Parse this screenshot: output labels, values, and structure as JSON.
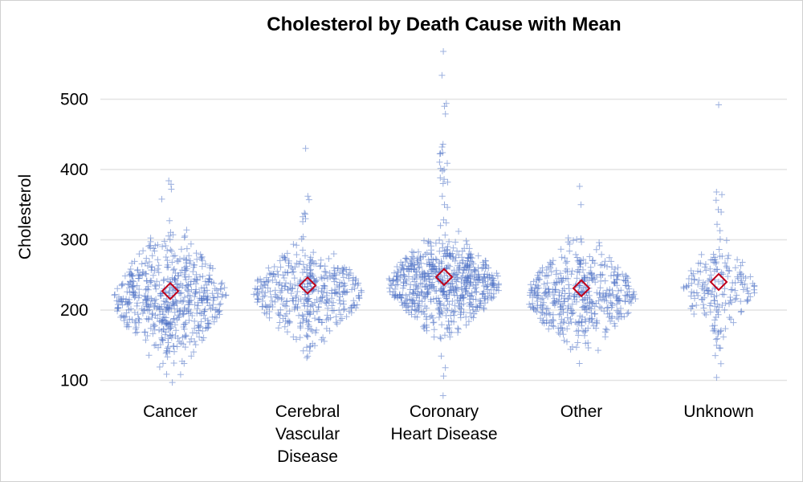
{
  "chart_data": {
    "type": "scatter",
    "subtype": "jittered dot plot with mean marker",
    "title": "Cholesterol by Death Cause with Mean",
    "xlabel": "",
    "ylabel": "Cholesterol",
    "ylim": [
      92,
      575
    ],
    "yticks": [
      100,
      200,
      300,
      400,
      500
    ],
    "grid": true,
    "legend": "none",
    "categories": [
      "Cancer",
      "Cerebral Vascular Disease",
      "Coronary Heart Disease",
      "Other",
      "Unknown"
    ],
    "category_lines": [
      [
        "Cancer"
      ],
      [
        "Cerebral",
        "Vascular",
        "Disease"
      ],
      [
        "Coronary",
        "Heart Disease"
      ],
      [
        "Other"
      ],
      [
        "Unknown"
      ]
    ],
    "means": [
      227,
      235,
      247,
      231,
      240
    ],
    "groups": [
      {
        "name": "Cancer",
        "count": 540,
        "mean": 227,
        "min": 97,
        "max": 384,
        "half_width": 70,
        "outliers": [
          97,
          384,
          379,
          372
        ]
      },
      {
        "name": "Cerebral Vascular Disease",
        "count": 380,
        "mean": 235,
        "min": 134,
        "max": 430,
        "half_width": 68,
        "outliers": [
          430,
          362,
          357
        ]
      },
      {
        "name": "Coronary Heart Disease",
        "count": 610,
        "mean": 247,
        "min": 150,
        "max": 568,
        "half_width": 70,
        "outliers": [
          568,
          534,
          494,
          490,
          479,
          436,
          432,
          424,
          400,
          386,
          380
        ]
      },
      {
        "name": "Other",
        "count": 420,
        "mean": 231,
        "min": 124,
        "max": 376,
        "half_width": 68,
        "outliers": [
          124,
          376,
          350
        ]
      },
      {
        "name": "Unknown",
        "count": 150,
        "mean": 240,
        "min": 146,
        "max": 492,
        "half_width": 46,
        "outliers": [
          492,
          368,
          343,
          322,
          146,
          146
        ]
      }
    ],
    "colors": {
      "points": "#4a6fc4",
      "mean_marker": "#c0001a",
      "grid": "#e3e3e3"
    },
    "markers": {
      "points": "plus",
      "mean": "diamond"
    }
  }
}
